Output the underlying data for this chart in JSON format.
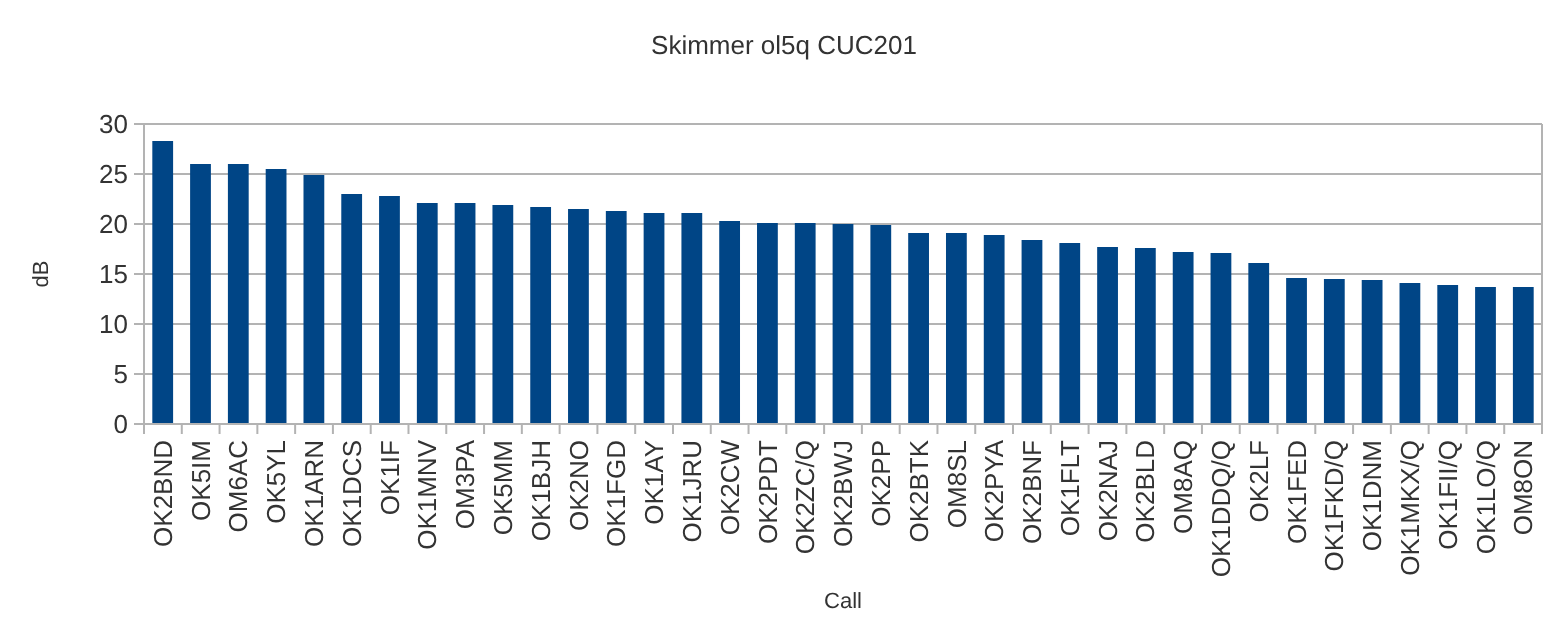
{
  "chart_data": {
    "type": "bar",
    "title": "Skimmer ol5q CUC201",
    "xlabel": "Call",
    "ylabel": "dB",
    "categories": [
      "OK2BND",
      "OK5IM",
      "OM6AC",
      "OK5YL",
      "OK1ARN",
      "OK1DCS",
      "OK1IF",
      "OK1MNV",
      "OM3PA",
      "OK5MM",
      "OK1BJH",
      "OK2NO",
      "OK1FGD",
      "OK1AY",
      "OK1JRU",
      "OK2CW",
      "OK2PDT",
      "OK2ZC/Q",
      "OK2BWJ",
      "OK2PP",
      "OK2BTK",
      "OM8SL",
      "OK2PYA",
      "OK2BNF",
      "OK1FLT",
      "OK2NAJ",
      "OK2BLD",
      "OM8AQ",
      "OK1DDQ/Q",
      "OK2LF",
      "OK1FED",
      "OK1FKD/Q",
      "OK1DNM",
      "OK1MKX/Q",
      "OK1FII/Q",
      "OK1LO/Q",
      "OM8ON"
    ],
    "values": [
      28.3,
      26.0,
      26.0,
      25.5,
      24.9,
      23.0,
      22.8,
      22.1,
      22.1,
      21.9,
      21.7,
      21.5,
      21.3,
      21.1,
      21.1,
      20.3,
      20.1,
      20.1,
      20.0,
      19.9,
      19.1,
      19.1,
      18.9,
      18.4,
      18.1,
      17.7,
      17.6,
      17.2,
      17.1,
      16.1,
      14.6,
      14.5,
      14.4,
      14.1,
      13.9,
      13.7,
      13.7
    ],
    "color": "#004586",
    "ylim": [
      0,
      30
    ],
    "yticks": [
      0,
      5,
      10,
      15,
      20,
      25,
      30
    ],
    "grid": "y"
  }
}
